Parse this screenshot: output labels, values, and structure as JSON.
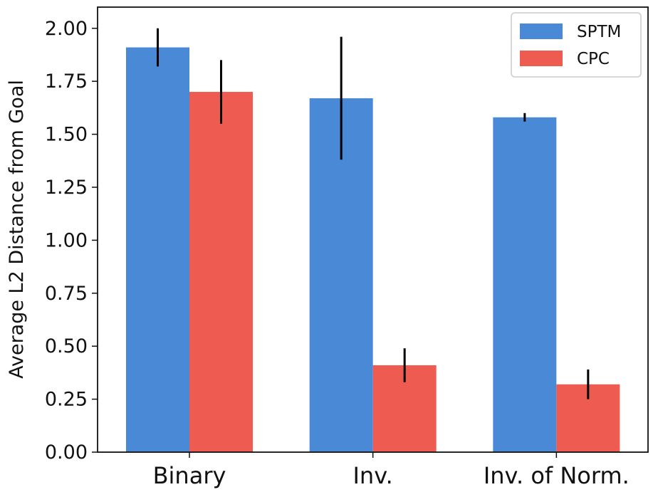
{
  "chart_data": {
    "type": "bar",
    "title": "",
    "xlabel": "",
    "ylabel": "Average L2 Distance from Goal",
    "ylim": [
      0,
      2.1
    ],
    "yticks": [
      0.0,
      0.25,
      0.5,
      0.75,
      1.0,
      1.25,
      1.5,
      1.75,
      2.0
    ],
    "ytick_labels": [
      "0.00",
      "0.25",
      "0.50",
      "0.75",
      "1.00",
      "1.25",
      "1.50",
      "1.75",
      "2.00"
    ],
    "categories": [
      "Binary",
      "Inv.",
      "Inv. of Norm."
    ],
    "series": [
      {
        "name": "SPTM",
        "color": "#4a89d6",
        "values": [
          1.91,
          1.67,
          1.58
        ],
        "error_low": [
          1.82,
          1.38,
          1.56
        ],
        "error_high": [
          2.0,
          1.96,
          1.6
        ]
      },
      {
        "name": "CPC",
        "color": "#ee5b50",
        "values": [
          1.7,
          0.41,
          0.32
        ],
        "error_low": [
          1.55,
          0.33,
          0.25
        ],
        "error_high": [
          1.85,
          0.49,
          0.39
        ]
      }
    ],
    "legend_position": "top-right",
    "grid": false
  }
}
